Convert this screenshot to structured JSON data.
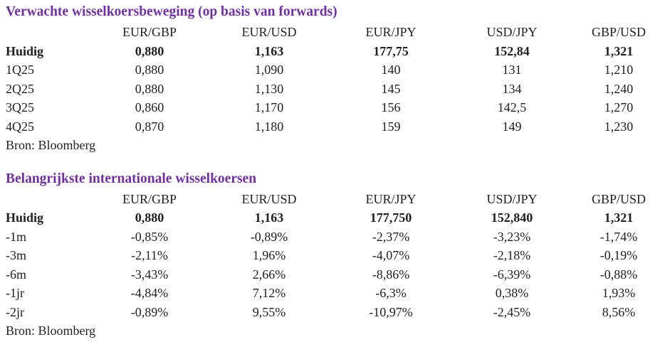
{
  "page": {
    "background_color": "#ffffff",
    "title_accent_color": "#7030a0",
    "body_text_color": "#1f1f1f"
  },
  "chart_data": [
    {
      "type": "table",
      "title": "Verwachte wisselkoersbeweging (op basis van forwards)",
      "columns": [
        "",
        "EUR/GBP",
        "EUR/USD",
        "EUR/JPY",
        "USD/JPY",
        "GBP/USD"
      ],
      "rows": [
        {
          "label": "Huidig",
          "bold": true,
          "values": [
            "0,880",
            "1,163",
            "177,75",
            "152,84",
            "1,321"
          ]
        },
        {
          "label": "1Q25",
          "bold": false,
          "values": [
            "0,880",
            "1,090",
            "140",
            "131",
            "1,210"
          ]
        },
        {
          "label": "2Q25",
          "bold": false,
          "values": [
            "0,880",
            "1,130",
            "145",
            "134",
            "1,240"
          ]
        },
        {
          "label": "3Q25",
          "bold": false,
          "values": [
            "0,860",
            "1,170",
            "156",
            "142,5",
            "1,270"
          ]
        },
        {
          "label": "4Q25",
          "bold": false,
          "values": [
            "0,870",
            "1,180",
            "159",
            "149",
            "1,230"
          ]
        }
      ],
      "source": "Bron: Bloomberg"
    },
    {
      "type": "table",
      "title": "Belangrijkste internationale wisselkoersen",
      "columns": [
        "",
        "EUR/GBP",
        "EUR/USD",
        "EUR/JPY",
        "USD/JPY",
        "GBP/USD"
      ],
      "rows": [
        {
          "label": "Huidig",
          "bold": true,
          "values": [
            "0,880",
            "1,163",
            "177,750",
            "152,840",
            "1,321"
          ]
        },
        {
          "label": "-1m",
          "bold": false,
          "values": [
            "-0,85%",
            "-0,89%",
            "-2,37%",
            "-3,23%",
            "-1,74%"
          ]
        },
        {
          "label": "-3m",
          "bold": false,
          "values": [
            "-2,11%",
            "1,96%",
            "-4,07%",
            "-2,18%",
            "-0,19%"
          ]
        },
        {
          "label": "-6m",
          "bold": false,
          "values": [
            "-3,43%",
            "2,66%",
            "-8,86%",
            "-6,39%",
            "-0,88%"
          ]
        },
        {
          "label": "-1jr",
          "bold": false,
          "values": [
            "-4,84%",
            "7,12%",
            "-6,3%",
            "0,38%",
            "1,93%"
          ]
        },
        {
          "label": "-2jr",
          "bold": false,
          "values": [
            "-0,89%",
            "9,55%",
            "-10,97%",
            "-2,45%",
            "8,56%"
          ]
        }
      ],
      "source": "Bron: Bloomberg"
    }
  ]
}
